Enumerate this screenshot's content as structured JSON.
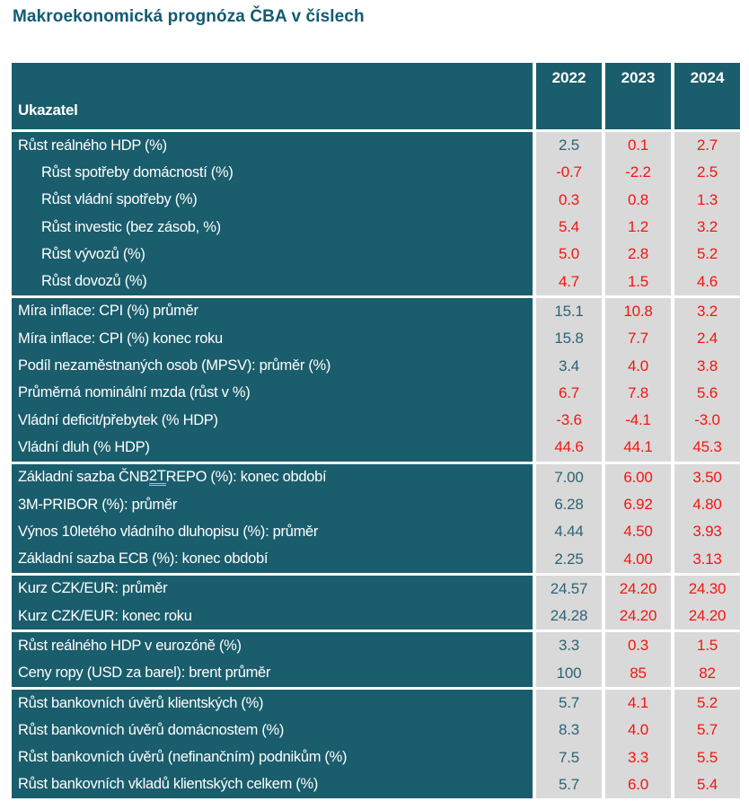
{
  "title": "Makroekonomická prognóza ČBA v číslech",
  "colors": {
    "table_teal": "#1a5d6c",
    "title_teal": "#125b72",
    "value_teal": "#2d6374",
    "value_red": "#f51511",
    "cell_gray": "#d9d9d9",
    "header_text": "#ffffff",
    "underline_blue": "#9dc3e6"
  },
  "table": {
    "header": {
      "indicator_label": "Ukazatel",
      "years": [
        "2022",
        "2023",
        "2024"
      ]
    },
    "sections": [
      {
        "rows": [
          {
            "label": "Růst reálného HDP (%)",
            "indent": false,
            "values": [
              "2.5",
              "0.1",
              "2.7"
            ],
            "styles": [
              "teal",
              "red",
              "red"
            ]
          },
          {
            "label": "Růst spotřeby domácností (%)",
            "indent": true,
            "values": [
              "-0.7",
              "-2.2",
              "2.5"
            ],
            "styles": [
              "red",
              "red",
              "red"
            ]
          },
          {
            "label": "Růst vládní spotřeby (%)",
            "indent": true,
            "values": [
              "0.3",
              "0.8",
              "1.3"
            ],
            "styles": [
              "red",
              "red",
              "red"
            ]
          },
          {
            "label": "Růst investic (bez zásob, %)",
            "indent": true,
            "values": [
              "5.4",
              "1.2",
              "3.2"
            ],
            "styles": [
              "red",
              "red",
              "red"
            ]
          },
          {
            "label": "Růst vývozů (%)",
            "indent": true,
            "values": [
              "5.0",
              "2.8",
              "5.2"
            ],
            "styles": [
              "red",
              "red",
              "red"
            ]
          },
          {
            "label": "Růst dovozů (%)",
            "indent": true,
            "values": [
              "4.7",
              "1.5",
              "4.6"
            ],
            "styles": [
              "red",
              "red",
              "red"
            ]
          }
        ]
      },
      {
        "rows": [
          {
            "label": "Míra inflace: CPI (%) průměr",
            "indent": false,
            "values": [
              "15.1",
              "10.8",
              "3.2"
            ],
            "styles": [
              "teal",
              "red",
              "red"
            ]
          },
          {
            "label": "Míra inflace: CPI (%) konec roku",
            "indent": false,
            "values": [
              "15.8",
              "7.7",
              "2.4"
            ],
            "styles": [
              "teal",
              "red",
              "red"
            ]
          },
          {
            "label": "Podíl nezaměstnaných osob (MPSV): průměr (%)",
            "indent": false,
            "values": [
              "3.4",
              "4.0",
              "3.8"
            ],
            "styles": [
              "teal",
              "red",
              "red"
            ]
          },
          {
            "label": "Průměrná nominální mzda (růst v %)",
            "indent": false,
            "values": [
              "6.7",
              "7.8",
              "5.6"
            ],
            "styles": [
              "red",
              "red",
              "red"
            ]
          },
          {
            "label": "Vládní deficit/přebytek (% HDP)",
            "indent": false,
            "values": [
              "-3.6",
              "-4.1",
              "-3.0"
            ],
            "styles": [
              "red",
              "red",
              "red"
            ]
          },
          {
            "label": "Vládní dluh (% HDP)",
            "indent": false,
            "values": [
              "44.6",
              "44.1",
              "45.3"
            ],
            "styles": [
              "red",
              "red",
              "red"
            ]
          }
        ]
      },
      {
        "rows": [
          {
            "label": "Základní sazba ČNB 2T REPO (%): konec období",
            "underline": "2T",
            "indent": false,
            "values": [
              "7.00",
              "6.00",
              "3.50"
            ],
            "styles": [
              "teal",
              "red",
              "red"
            ]
          },
          {
            "label": "3M-PRIBOR (%): průměr",
            "indent": false,
            "values": [
              "6.28",
              "6.92",
              "4.80"
            ],
            "styles": [
              "teal",
              "red",
              "red"
            ]
          },
          {
            "label": "Výnos 10letého vládního dluhopisu (%): průměr",
            "indent": false,
            "values": [
              "4.44",
              "4.50",
              "3.93"
            ],
            "styles": [
              "teal",
              "red",
              "red"
            ]
          },
          {
            "label": "Základní sazba ECB (%): konec období",
            "indent": false,
            "values": [
              "2.25",
              "4.00",
              "3.13"
            ],
            "styles": [
              "teal",
              "red",
              "red"
            ]
          }
        ]
      },
      {
        "rows": [
          {
            "label": "Kurz CZK/EUR: průměr",
            "indent": false,
            "values": [
              "24.57",
              "24.20",
              "24.30"
            ],
            "styles": [
              "teal",
              "red",
              "red"
            ]
          },
          {
            "label": "Kurz CZK/EUR: konec roku",
            "indent": false,
            "values": [
              "24.28",
              "24.20",
              "24.20"
            ],
            "styles": [
              "teal",
              "red",
              "red"
            ]
          }
        ]
      },
      {
        "rows": [
          {
            "label": "Růst reálného HDP v eurozóně (%)",
            "indent": false,
            "values": [
              "3.3",
              "0.3",
              "1.5"
            ],
            "styles": [
              "teal",
              "red",
              "red"
            ]
          },
          {
            "label": "Ceny ropy (USD za barel): brent průměr",
            "indent": false,
            "values": [
              "100",
              "85",
              "82"
            ],
            "styles": [
              "teal",
              "red",
              "red"
            ]
          }
        ]
      },
      {
        "rows": [
          {
            "label": "Růst bankovních úvěrů klientských (%)",
            "indent": false,
            "values": [
              "5.7",
              "4.1",
              "5.2"
            ],
            "styles": [
              "teal",
              "red",
              "red"
            ]
          },
          {
            "label": "Růst bankovních úvěrů domácnostem (%)",
            "indent": false,
            "values": [
              "8.3",
              "4.0",
              "5.7"
            ],
            "styles": [
              "teal",
              "red",
              "red"
            ]
          },
          {
            "label": "Růst bankovních úvěrů (nefinančním) podnikům (%)",
            "indent": false,
            "values": [
              "7.5",
              "3.3",
              "5.5"
            ],
            "styles": [
              "teal",
              "red",
              "red"
            ]
          },
          {
            "label": "Růst bankovních vkladů klientských celkem (%)",
            "indent": false,
            "values": [
              "5.7",
              "6.0",
              "5.4"
            ],
            "styles": [
              "teal",
              "red",
              "red"
            ]
          }
        ]
      }
    ]
  }
}
